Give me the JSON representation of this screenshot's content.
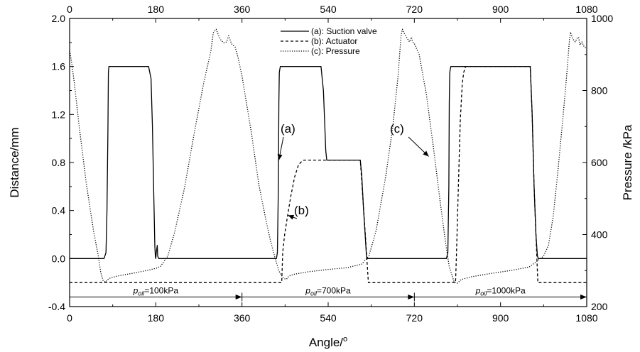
{
  "chart_data": {
    "type": "line",
    "x_axis": {
      "label": "Angle/°",
      "label_base": "Angle/",
      "label_sup": "o",
      "range": [
        0,
        1080
      ],
      "ticks": [
        0,
        180,
        360,
        540,
        720,
        900,
        1080
      ],
      "tick_labels": [
        "0",
        "180",
        "360",
        "540",
        "720",
        "900",
        "1080"
      ],
      "top_tick_labels": [
        "0",
        "180",
        "360",
        "540",
        "720",
        "900",
        "1080"
      ]
    },
    "y_axis_left": {
      "label": "Distance/mm",
      "range": [
        -0.4,
        2.0
      ],
      "ticks": [
        -0.4,
        0.0,
        0.4,
        0.8,
        1.2,
        1.6,
        2.0
      ],
      "tick_labels": [
        "-0.4",
        "0.0",
        "0.4",
        "0.8",
        "1.2",
        "1.6",
        "2.0"
      ]
    },
    "y_axis_right": {
      "label": "Pressure /kPa",
      "range": [
        200,
        1000
      ],
      "ticks": [
        200,
        400,
        600,
        800,
        1000
      ],
      "tick_labels": [
        "200",
        "400",
        "600",
        "800",
        "1000"
      ]
    },
    "grid": false,
    "legend_position": "top-center",
    "series": [
      {
        "name": "(a): Suction valve",
        "axis": "left",
        "style": "solid",
        "points": [
          [
            0,
            0
          ],
          [
            72,
            0
          ],
          [
            76,
            0.05
          ],
          [
            78,
            0.4
          ],
          [
            80,
            1.05
          ],
          [
            81,
            1.55
          ],
          [
            82,
            1.6
          ],
          [
            165,
            1.6
          ],
          [
            170,
            1.5
          ],
          [
            173,
            1.1
          ],
          [
            176,
            0.5
          ],
          [
            178,
            0.1
          ],
          [
            179,
            0.02
          ],
          [
            180,
            0
          ],
          [
            181,
            0.05
          ],
          [
            183,
            0.11
          ],
          [
            184,
            0.02
          ],
          [
            186,
            0
          ],
          [
            432,
            0
          ],
          [
            434,
            0.05
          ],
          [
            436,
            0.6
          ],
          [
            437,
            1.3
          ],
          [
            438,
            1.55
          ],
          [
            440,
            1.6
          ],
          [
            525,
            1.6
          ],
          [
            530,
            1.4
          ],
          [
            533,
            1.1
          ],
          [
            535,
            0.9
          ],
          [
            537,
            0.82
          ],
          [
            607,
            0.82
          ],
          [
            610,
            0.7
          ],
          [
            614,
            0.4
          ],
          [
            618,
            0.15
          ],
          [
            620,
            0.02
          ],
          [
            622,
            0
          ],
          [
            787,
            0
          ],
          [
            790,
            0.05
          ],
          [
            792,
            0.6
          ],
          [
            793,
            1.3
          ],
          [
            794,
            1.55
          ],
          [
            796,
            1.6
          ],
          [
            962,
            1.6
          ],
          [
            966,
            1.2
          ],
          [
            970,
            0.6
          ],
          [
            974,
            0.2
          ],
          [
            977,
            0.02
          ],
          [
            979,
            0
          ],
          [
            1080,
            0
          ]
        ]
      },
      {
        "name": "(b): Actuator",
        "axis": "left",
        "style": "dashed",
        "points": [
          [
            0,
            -0.2
          ],
          [
            443,
            -0.2
          ],
          [
            445,
            0.05
          ],
          [
            449,
            0.2
          ],
          [
            455,
            0.35
          ],
          [
            462,
            0.52
          ],
          [
            470,
            0.68
          ],
          [
            478,
            0.78
          ],
          [
            485,
            0.81
          ],
          [
            490,
            0.82
          ],
          [
            607,
            0.82
          ],
          [
            610,
            0.65
          ],
          [
            615,
            0.35
          ],
          [
            620,
            0.05
          ],
          [
            624,
            -0.2
          ],
          [
            806,
            -0.2
          ],
          [
            808,
            0.05
          ],
          [
            812,
            0.6
          ],
          [
            816,
            1.15
          ],
          [
            820,
            1.45
          ],
          [
            823,
            1.55
          ],
          [
            827,
            1.6
          ],
          [
            962,
            1.6
          ],
          [
            966,
            1.2
          ],
          [
            970,
            0.6
          ],
          [
            975,
            0.1
          ],
          [
            978,
            -0.2
          ],
          [
            1080,
            -0.2
          ]
        ]
      },
      {
        "name": "(c): Pressure",
        "axis": "right",
        "style": "dotted",
        "points": [
          [
            0,
            910
          ],
          [
            4,
            880
          ],
          [
            10,
            820
          ],
          [
            20,
            700
          ],
          [
            35,
            540
          ],
          [
            50,
            410
          ],
          [
            60,
            340
          ],
          [
            65,
            295
          ],
          [
            70,
            272
          ],
          [
            75,
            268
          ],
          [
            82,
            278
          ],
          [
            100,
            285
          ],
          [
            130,
            292
          ],
          [
            160,
            300
          ],
          [
            180,
            306
          ],
          [
            190,
            312
          ],
          [
            205,
            340
          ],
          [
            220,
            410
          ],
          [
            240,
            530
          ],
          [
            260,
            680
          ],
          [
            280,
            820
          ],
          [
            295,
            910
          ],
          [
            300,
            960
          ],
          [
            306,
            970
          ],
          [
            312,
            950
          ],
          [
            316,
            940
          ],
          [
            322,
            932
          ],
          [
            328,
            935
          ],
          [
            332,
            952
          ],
          [
            334,
            945
          ],
          [
            338,
            930
          ],
          [
            346,
            920
          ],
          [
            352,
            890
          ],
          [
            360,
            840
          ],
          [
            380,
            680
          ],
          [
            395,
            540
          ],
          [
            410,
            440
          ],
          [
            420,
            380
          ],
          [
            430,
            330
          ],
          [
            437,
            300
          ],
          [
            440,
            292
          ],
          [
            447,
            278
          ],
          [
            453,
            276
          ],
          [
            458,
            285
          ],
          [
            470,
            290
          ],
          [
            500,
            297
          ],
          [
            540,
            303
          ],
          [
            580,
            308
          ],
          [
            610,
            318
          ],
          [
            625,
            340
          ],
          [
            640,
            410
          ],
          [
            660,
            560
          ],
          [
            675,
            700
          ],
          [
            686,
            840
          ],
          [
            692,
            950
          ],
          [
            695,
            970
          ],
          [
            700,
            955
          ],
          [
            705,
            945
          ],
          [
            710,
            935
          ],
          [
            714,
            948
          ],
          [
            716,
            936
          ],
          [
            720,
            930
          ],
          [
            730,
            900
          ],
          [
            745,
            790
          ],
          [
            760,
            640
          ],
          [
            775,
            480
          ],
          [
            785,
            380
          ],
          [
            793,
            310
          ],
          [
            798,
            290
          ],
          [
            803,
            268
          ],
          [
            810,
            265
          ],
          [
            818,
            275
          ],
          [
            840,
            283
          ],
          [
            880,
            292
          ],
          [
            920,
            300
          ],
          [
            960,
            310
          ],
          [
            990,
            340
          ],
          [
            1000,
            370
          ],
          [
            1010,
            450
          ],
          [
            1020,
            580
          ],
          [
            1030,
            720
          ],
          [
            1038,
            840
          ],
          [
            1044,
            940
          ],
          [
            1046,
            962
          ],
          [
            1050,
            945
          ],
          [
            1056,
            935
          ],
          [
            1060,
            945
          ],
          [
            1063,
            948
          ],
          [
            1066,
            926
          ],
          [
            1070,
            935
          ],
          [
            1075,
            920
          ],
          [
            1080,
            918
          ]
        ]
      }
    ],
    "annotations": [
      {
        "label": "(a)",
        "arrow_target": [
          437,
          0.82
        ]
      },
      {
        "label": "(b)",
        "arrow_target": [
          456,
          0.36
        ]
      },
      {
        "label": "(c)",
        "arrow_target": [
          750,
          0.85
        ]
      }
    ],
    "baseline_phases": {
      "y_value": -0.32,
      "segments": [
        {
          "label_prefix": "p",
          "label_sub": "oil",
          "label_suffix": "=100kPa",
          "x_start": 0,
          "x_end": 360
        },
        {
          "label_prefix": "p",
          "label_sub": "oil",
          "label_suffix": "=700kPa",
          "x_start": 360,
          "x_end": 720
        },
        {
          "label_prefix": "p",
          "label_sub": "oil",
          "label_suffix": "=1000kPa",
          "x_start": 720,
          "x_end": 1080
        }
      ]
    }
  }
}
